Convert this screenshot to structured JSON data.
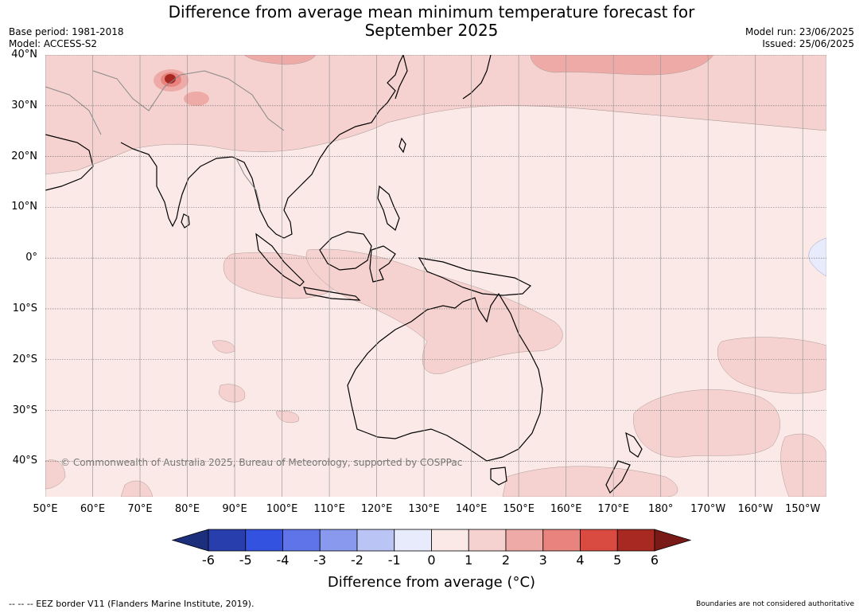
{
  "title_line1": "Difference from average mean minimum temperature forecast for",
  "title_line2": "September 2025",
  "base_period": "Base period: 1981-2018",
  "model": "Model: ACCESS-S2",
  "model_run": "Model run: 23/06/2025",
  "issued": "Issued: 25/06/2025",
  "map": {
    "lon_range": [
      50,
      215
    ],
    "lat_range": [
      -47,
      40
    ],
    "lat_labels": [
      {
        "lat": 40,
        "text": "40°N"
      },
      {
        "lat": 30,
        "text": "30°N"
      },
      {
        "lat": 20,
        "text": "20°N"
      },
      {
        "lat": 10,
        "text": "10°N"
      },
      {
        "lat": 0,
        "text": "0°"
      },
      {
        "lat": -10,
        "text": "10°S"
      },
      {
        "lat": -20,
        "text": "20°S"
      },
      {
        "lat": -30,
        "text": "30°S"
      },
      {
        "lat": -40,
        "text": "40°S"
      }
    ],
    "lon_labels": [
      {
        "lon": 50,
        "text": "50°E"
      },
      {
        "lon": 60,
        "text": "60°E"
      },
      {
        "lon": 70,
        "text": "70°E"
      },
      {
        "lon": 80,
        "text": "80°E"
      },
      {
        "lon": 90,
        "text": "90°E"
      },
      {
        "lon": 100,
        "text": "100°E"
      },
      {
        "lon": 110,
        "text": "110°E"
      },
      {
        "lon": 120,
        "text": "120°E"
      },
      {
        "lon": 130,
        "text": "130°E"
      },
      {
        "lon": 140,
        "text": "140°E"
      },
      {
        "lon": 150,
        "text": "150°E"
      },
      {
        "lon": 160,
        "text": "160°E"
      },
      {
        "lon": 170,
        "text": "170°E"
      },
      {
        "lon": 180,
        "text": "180°"
      },
      {
        "lon": 190,
        "text": "170°W"
      },
      {
        "lon": 200,
        "text": "160°W"
      },
      {
        "lon": 210,
        "text": "150°W"
      }
    ],
    "copyright": "© Commonwealth of Australia 2025, Bureau of Meteorology, supported by COSPPac"
  },
  "colorbar": {
    "title": "Difference from average ($^\\circ$C)",
    "title_display": "Difference from average (°C)",
    "colors": [
      "#1c2f7c",
      "#283ead",
      "#3352e0",
      "#5e74e8",
      "#8899ee",
      "#bbc5f5",
      "#e8ebfb",
      "#fbe9e8",
      "#f5d2cf",
      "#eeaaa6",
      "#e8837d",
      "#d94a40",
      "#a82922",
      "#7a1a16"
    ],
    "labels": [
      "-6",
      "-5",
      "-4",
      "-3",
      "-2",
      "-1",
      "0",
      "1",
      "2",
      "3",
      "4",
      "5",
      "6"
    ]
  },
  "footer_left": "--  --  -- EEZ border V11 (Flanders Marine Institute, 2019).",
  "footer_right": "Boundaries are not considered authoritative"
}
